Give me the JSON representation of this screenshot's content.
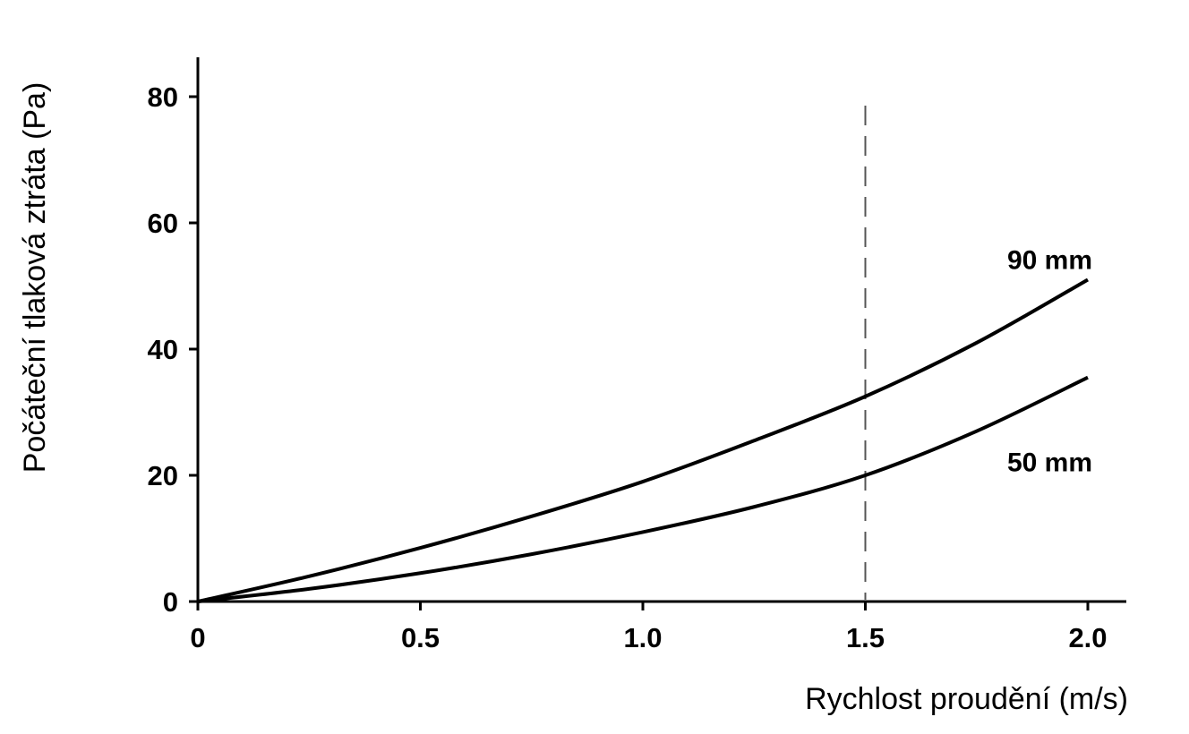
{
  "chart_data": {
    "type": "line",
    "xlabel": "Rychlost proudění (m/s)",
    "ylabel": "Počáteční tlaková ztráta (Pa)",
    "xlim": [
      0,
      2.0
    ],
    "ylim": [
      0,
      80
    ],
    "x_ticks": [
      "0",
      "0.5",
      "1.0",
      "1.5",
      "2.0"
    ],
    "y_ticks": [
      "0",
      "20",
      "40",
      "60",
      "80"
    ],
    "reference_line": {
      "x": 1.5,
      "style": "dashed"
    },
    "series": [
      {
        "name": "90 mm",
        "x": [
          0,
          0.25,
          0.5,
          0.75,
          1.0,
          1.25,
          1.5,
          1.75,
          2.0
        ],
        "y": [
          0,
          4,
          8.5,
          13.5,
          19,
          25.5,
          32.5,
          41,
          51
        ]
      },
      {
        "name": "50 mm",
        "x": [
          0,
          0.25,
          0.5,
          0.75,
          1.0,
          1.25,
          1.5,
          1.75,
          2.0
        ],
        "y": [
          0,
          2,
          4.5,
          7.5,
          11,
          15,
          20,
          27,
          35.5
        ]
      }
    ],
    "grid": false,
    "legend": "none"
  },
  "colors": {
    "line": "#000000",
    "axis": "#000000",
    "reference": "#555555"
  }
}
